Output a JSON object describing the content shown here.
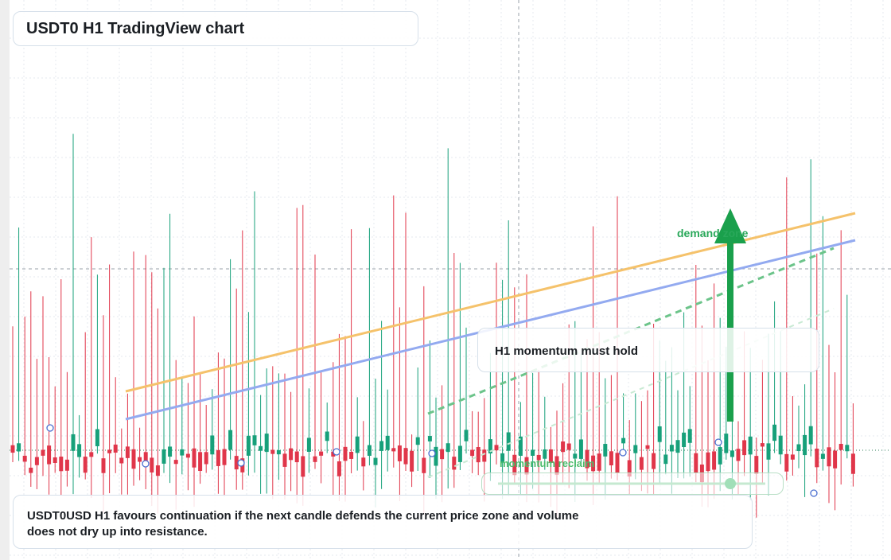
{
  "title": "USDT0 H1 TradingView chart",
  "callout": "H1 momentum must hold",
  "caption": "USDT0USD H1 favours continuation if the next candle defends the current price zone and volume does not dry up into resistance.",
  "annotations": {
    "demand": "demand zone",
    "momentum": "momentum reclaim"
  },
  "colors": {
    "up": "#17a07a",
    "down": "#e0364a",
    "trend_orange": "#f5c26b",
    "trend_blue": "#93aaf0",
    "dashed_green": "#6cc48a",
    "arrow_green": "#1aa04c"
  },
  "chart_data": {
    "type": "candlestick",
    "title": "USDT0 H1 TradingView chart",
    "interval": "H1",
    "grid": true,
    "candle_count": 140
  }
}
